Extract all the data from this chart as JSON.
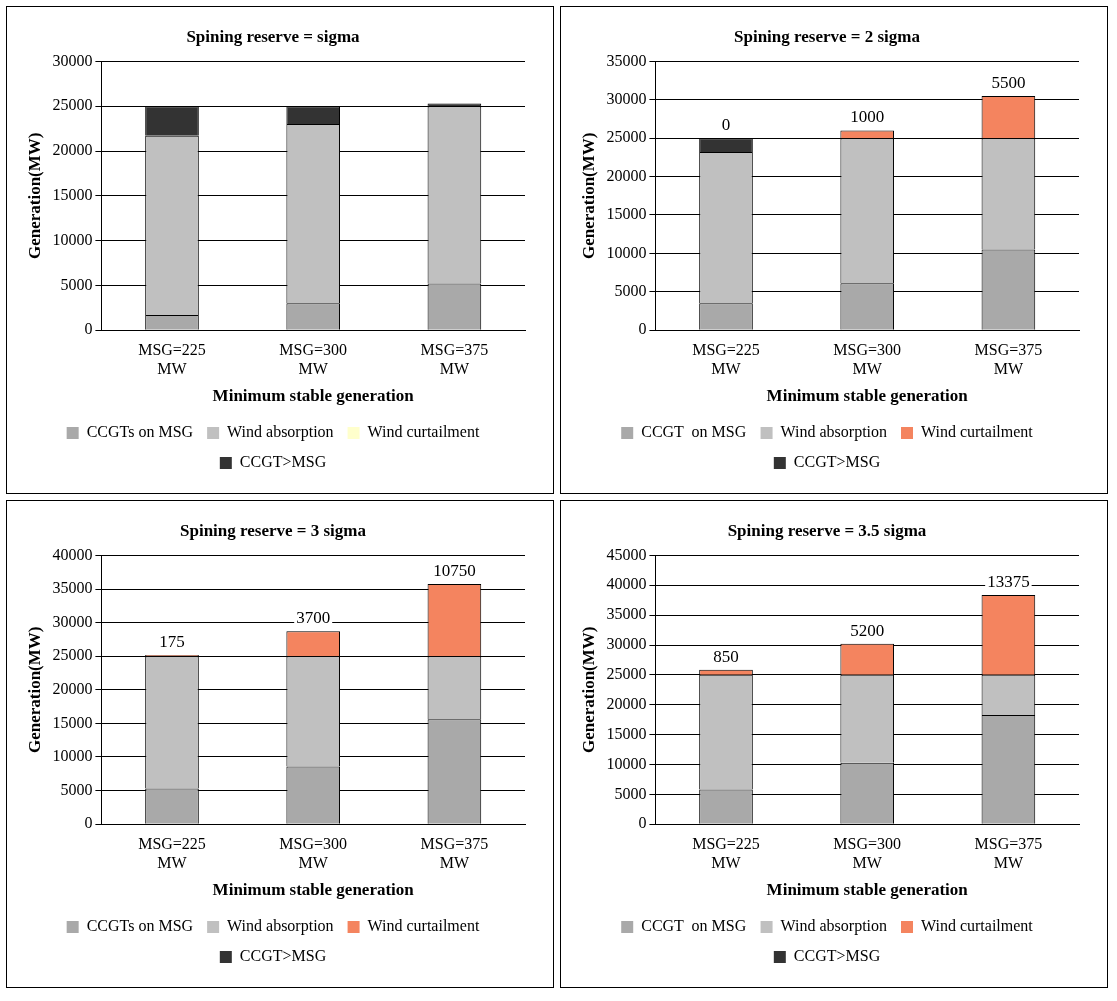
{
  "chart_data": [
    {
      "type": "bar",
      "title": "Spining reserve = sigma",
      "xlabel": "Minimum stable generation",
      "ylabel": "Generation(MW)",
      "categories": [
        "MSG=225 MW",
        "MSG=300 MW",
        "MSG=375 MW"
      ],
      "stacked": true,
      "ylim": [
        0,
        30000
      ],
      "yticks": [
        0,
        5000,
        10000,
        15000,
        20000,
        25000,
        30000
      ],
      "grid": "y",
      "legend": "bottom",
      "series": [
        {
          "name": "CCGTs on MSG",
          "color": "#a9a9a9",
          "values": [
            1700,
            3000,
            5200
          ]
        },
        {
          "name": "Wind absorption",
          "color": "#c0c0c0",
          "values": [
            20000,
            20000,
            19800
          ]
        },
        {
          "name": "Wind curtailment",
          "color": "#ffffcc",
          "values": [
            0,
            0,
            0
          ]
        },
        {
          "name": "CCGT>MSG",
          "color": "#333333",
          "values": [
            3300,
            2000,
            300
          ]
        }
      ]
    },
    {
      "type": "bar",
      "title": "Spining reserve = 2 sigma",
      "xlabel": "Minimum stable generation",
      "ylabel": "Generation(MW)",
      "categories": [
        "MSG=225 MW",
        "MSG=300 MW",
        "MSG=375 MW"
      ],
      "stacked": true,
      "ylim": [
        0,
        35000
      ],
      "yticks": [
        0,
        5000,
        10000,
        15000,
        20000,
        25000,
        30000,
        35000
      ],
      "grid": "y",
      "legend": "bottom",
      "series": [
        {
          "name": "CCGT  on MSG",
          "color": "#a9a9a9",
          "values": [
            3500,
            6100,
            10500
          ]
        },
        {
          "name": "Wind absorption",
          "color": "#c0c0c0",
          "values": [
            19700,
            18900,
            14500
          ]
        },
        {
          "name": "Wind curtailment",
          "color": "#f4845f",
          "values": [
            0,
            1000,
            5500
          ],
          "value_labels": [
            "0",
            "1000",
            "5500"
          ]
        },
        {
          "name": "CCGT>MSG",
          "color": "#333333",
          "values": [
            1800,
            0,
            0
          ]
        }
      ]
    },
    {
      "type": "bar",
      "title": "Spining reserve = 3 sigma",
      "xlabel": "Minimum stable generation",
      "ylabel": "Generation(MW)",
      "categories": [
        "MSG=225 MW",
        "MSG=300 MW",
        "MSG=375 MW"
      ],
      "stacked": true,
      "ylim": [
        0,
        40000
      ],
      "yticks": [
        0,
        5000,
        10000,
        15000,
        20000,
        25000,
        30000,
        35000,
        40000
      ],
      "grid": "y",
      "legend": "bottom",
      "series": [
        {
          "name": "CCGTs on MSG",
          "color": "#a9a9a9",
          "values": [
            5300,
            8600,
            15600
          ]
        },
        {
          "name": "Wind absorption",
          "color": "#c0c0c0",
          "values": [
            19700,
            16400,
            9400
          ]
        },
        {
          "name": "Wind curtailment",
          "color": "#f4845f",
          "values": [
            175,
            3700,
            10750
          ],
          "value_labels": [
            "175",
            "3700",
            "10750"
          ]
        },
        {
          "name": "CCGT>MSG",
          "color": "#333333",
          "values": [
            0,
            0,
            0
          ]
        }
      ]
    },
    {
      "type": "bar",
      "title": "Spining reserve = 3.5 sigma",
      "xlabel": "Minimum stable generation",
      "ylabel": "Generation(MW)",
      "categories": [
        "MSG=225 MW",
        "MSG=300 MW",
        "MSG=375 MW"
      ],
      "stacked": true,
      "ylim": [
        0,
        45000
      ],
      "yticks": [
        0,
        5000,
        10000,
        15000,
        20000,
        25000,
        30000,
        35000,
        40000,
        45000
      ],
      "grid": "y",
      "legend": "bottom",
      "series": [
        {
          "name": "CCGT  on MSG",
          "color": "#a9a9a9",
          "values": [
            5800,
            10300,
            18300
          ]
        },
        {
          "name": "Wind absorption",
          "color": "#c0c0c0",
          "values": [
            19200,
            14700,
            6700
          ]
        },
        {
          "name": "Wind curtailment",
          "color": "#f4845f",
          "values": [
            850,
            5200,
            13375
          ],
          "value_labels": [
            "850",
            "5200",
            "13375"
          ]
        },
        {
          "name": "CCGT>MSG",
          "color": "#333333",
          "values": [
            0,
            0,
            0
          ]
        }
      ]
    }
  ]
}
